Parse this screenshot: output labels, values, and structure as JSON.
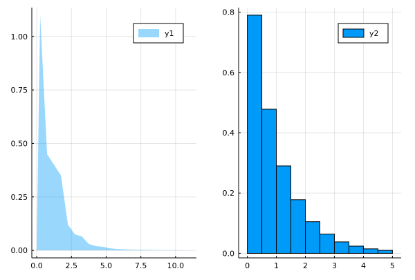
{
  "chart_data": [
    {
      "type": "area",
      "legend_position": "top-right",
      "grid": true,
      "xlim": [
        -0.35,
        11.5
      ],
      "ylim": [
        -0.035,
        1.135
      ],
      "xticks": [
        0,
        2.5,
        5,
        7.5,
        10
      ],
      "xtick_labels": [
        "0.0",
        "2.5",
        "5.0",
        "7.5",
        "10.0"
      ],
      "yticks": [
        0,
        0.25,
        0.5,
        0.75,
        1
      ],
      "ytick_labels": [
        "0.00",
        "0.25",
        "0.50",
        "0.75",
        "1.00"
      ],
      "series": [
        {
          "name": "y1",
          "color": "#009AF9",
          "fill_opacity": 0.4,
          "x": [
            0,
            0.25,
            0.75,
            1.25,
            1.75,
            2.25,
            2.75,
            3.25,
            3.75,
            4.25,
            4.75,
            5.25,
            5.75,
            6.25,
            7,
            8,
            9,
            10,
            11.2
          ],
          "values": [
            0,
            1.1,
            0.45,
            0.4,
            0.35,
            0.12,
            0.075,
            0.065,
            0.03,
            0.02,
            0.017,
            0.01,
            0.007,
            0.005,
            0.003,
            0.002,
            0.001,
            0.001,
            0
          ]
        }
      ]
    },
    {
      "type": "bar",
      "legend_position": "top-right",
      "grid": true,
      "xlim": [
        -0.3,
        5.3
      ],
      "ylim": [
        -0.015,
        0.815
      ],
      "xticks": [
        0,
        1,
        2,
        3,
        4,
        5
      ],
      "xtick_labels": [
        "0",
        "1",
        "2",
        "3",
        "4",
        "5"
      ],
      "yticks": [
        0,
        0.2,
        0.4,
        0.6,
        0.8
      ],
      "ytick_labels": [
        "0.0",
        "0.2",
        "0.4",
        "0.6",
        "0.8"
      ],
      "bin_edges": [
        0,
        0.5,
        1,
        1.5,
        2,
        2.5,
        3,
        3.5,
        4,
        4.5,
        5
      ],
      "series": [
        {
          "name": "y2",
          "color": "#009AF9",
          "values": [
            0.79,
            0.478,
            0.29,
            0.178,
            0.105,
            0.064,
            0.038,
            0.024,
            0.015,
            0.01
          ]
        }
      ]
    }
  ]
}
